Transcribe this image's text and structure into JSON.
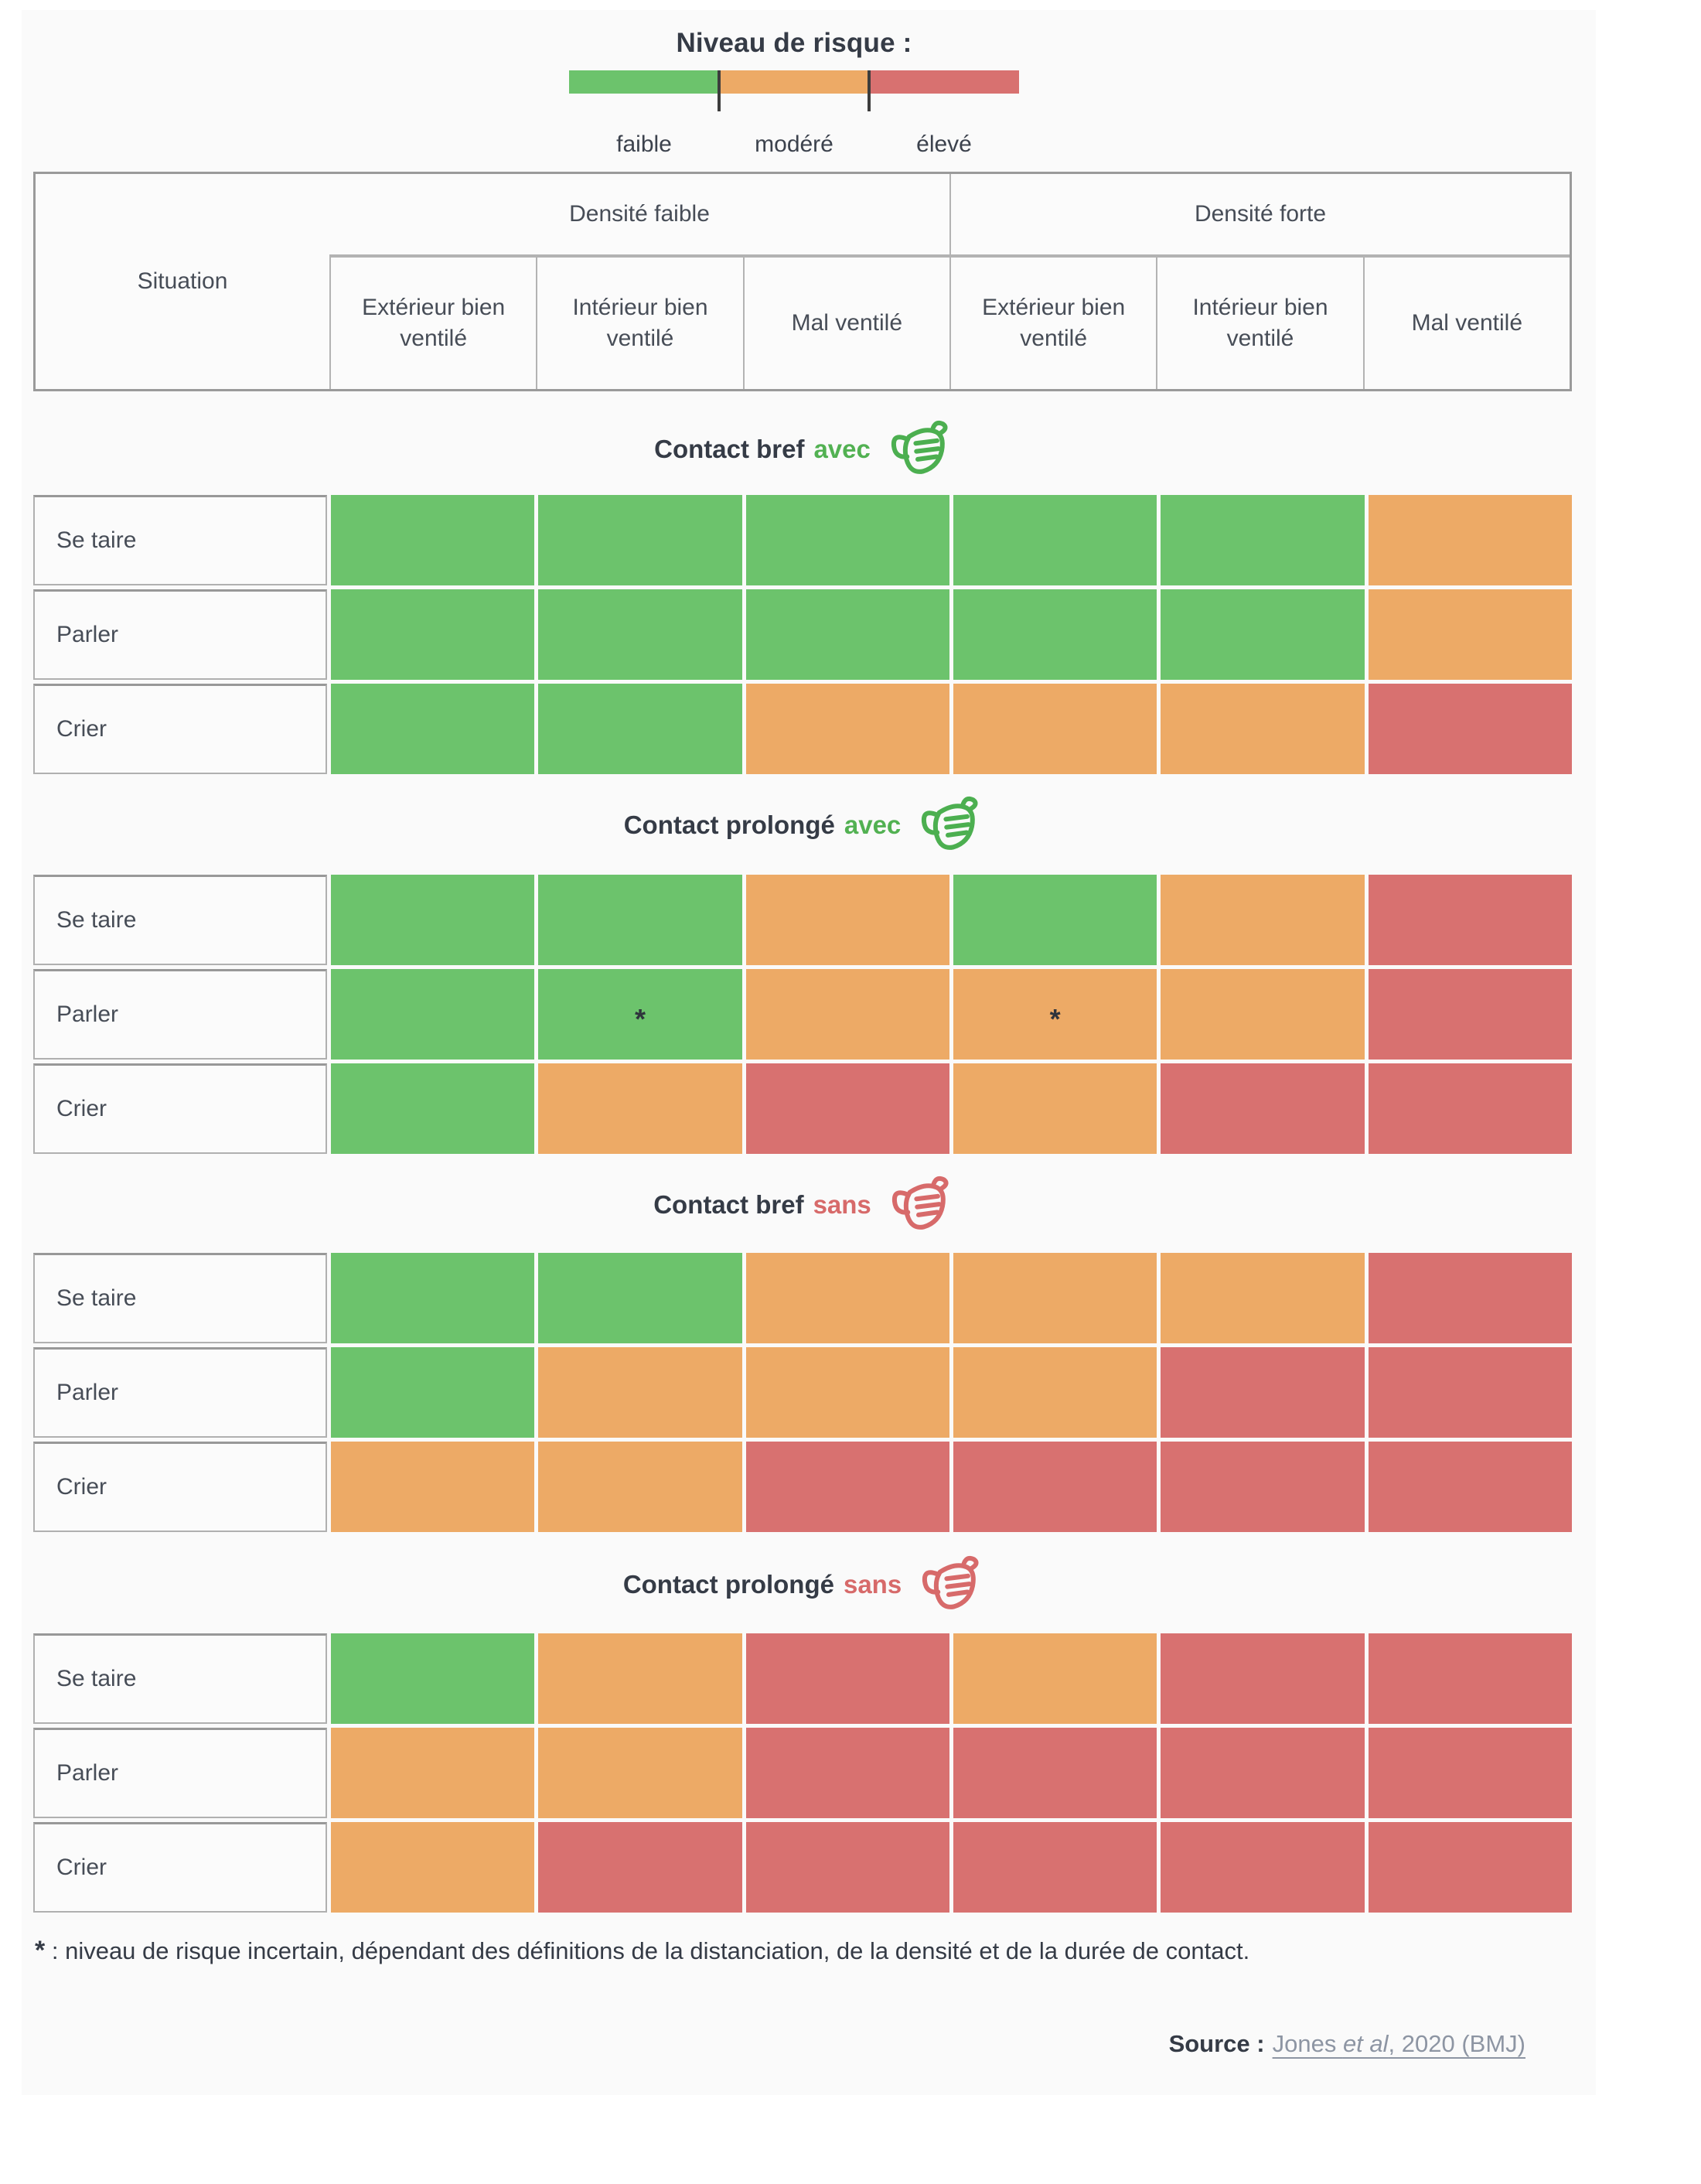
{
  "legend": {
    "title": "Niveau de risque :",
    "levels": [
      {
        "key": "faible",
        "label": "faible",
        "color": "#6cc36c"
      },
      {
        "key": "modere",
        "label": "modéré",
        "color": "#edaa66"
      },
      {
        "key": "eleve",
        "label": "élevé",
        "color": "#d87170"
      }
    ]
  },
  "risk_colors": {
    "faible": "#6cc36c",
    "modere": "#edaa66",
    "eleve": "#d87170"
  },
  "header": {
    "situation_label": "Situation",
    "groups": [
      {
        "label": "Densité faible"
      },
      {
        "label": "Densité forte"
      }
    ],
    "columns": [
      "Extérieur bien ventilé",
      "Intérieur bien ventilé",
      "Mal ventilé",
      "Extérieur bien ventilé",
      "Intérieur bien ventilé",
      "Mal ventilé"
    ]
  },
  "sections": [
    {
      "title_main": "Contact bref",
      "title_mask": "avec",
      "mask_color": "#4caf50",
      "mask_word_color": "#52b152",
      "rows": [
        {
          "label": "Se taire",
          "cells": [
            "faible",
            "faible",
            "faible",
            "faible",
            "faible",
            "modere"
          ]
        },
        {
          "label": "Parler",
          "cells": [
            "faible",
            "faible",
            "faible",
            "faible",
            "faible",
            "modere"
          ]
        },
        {
          "label": "Crier",
          "cells": [
            "faible",
            "faible",
            "modere",
            "modere",
            "modere",
            "eleve"
          ]
        }
      ]
    },
    {
      "title_main": "Contact prolongé",
      "title_mask": "avec",
      "mask_color": "#4caf50",
      "mask_word_color": "#52b152",
      "rows": [
        {
          "label": "Se taire",
          "cells": [
            "faible",
            "faible",
            "modere",
            "faible",
            "modere",
            "eleve"
          ]
        },
        {
          "label": "Parler",
          "cells": [
            "faible",
            "faible*",
            "modere",
            "modere*",
            "modere",
            "eleve"
          ]
        },
        {
          "label": "Crier",
          "cells": [
            "faible",
            "modere",
            "eleve",
            "modere",
            "eleve",
            "eleve"
          ]
        }
      ]
    },
    {
      "title_main": "Contact bref",
      "title_mask": "sans",
      "mask_color": "#d76a6a",
      "mask_word_color": "#d76a6a",
      "rows": [
        {
          "label": "Se taire",
          "cells": [
            "faible",
            "faible",
            "modere",
            "modere",
            "modere",
            "eleve"
          ]
        },
        {
          "label": "Parler",
          "cells": [
            "faible",
            "modere",
            "modere",
            "modere",
            "eleve",
            "eleve"
          ]
        },
        {
          "label": "Crier",
          "cells": [
            "modere",
            "modere",
            "eleve",
            "eleve",
            "eleve",
            "eleve"
          ]
        }
      ]
    },
    {
      "title_main": "Contact prolongé",
      "title_mask": "sans",
      "mask_color": "#d76a6a",
      "mask_word_color": "#d76a6a",
      "rows": [
        {
          "label": "Se taire",
          "cells": [
            "faible",
            "modere",
            "eleve",
            "modere",
            "eleve",
            "eleve"
          ]
        },
        {
          "label": "Parler",
          "cells": [
            "modere",
            "modere",
            "eleve",
            "eleve",
            "eleve",
            "eleve"
          ]
        },
        {
          "label": "Crier",
          "cells": [
            "modere",
            "eleve",
            "eleve",
            "eleve",
            "eleve",
            "eleve"
          ]
        }
      ]
    }
  ],
  "footnote": {
    "star": "*",
    "text": " : niveau de risque incertain, dépendant des définitions de la distanciation, de la densité et de la durée de contact."
  },
  "source": {
    "label": "Source :",
    "link_pre": "Jones ",
    "link_italic": "et al",
    "link_post": ", 2020 (BMJ)"
  },
  "chart_data": {
    "type": "heatmap",
    "title": "Niveau de risque :",
    "legend_entries": [
      "faible",
      "modéré",
      "élevé"
    ],
    "legend_colors": [
      "#6cc36c",
      "#edaa66",
      "#d87170"
    ],
    "columns": [
      "Densité faible / Extérieur bien ventilé",
      "Densité faible / Intérieur bien ventilé",
      "Densité faible / Mal ventilé",
      "Densité forte / Extérieur bien ventilé",
      "Densité forte / Intérieur bien ventilé",
      "Densité forte / Mal ventilé"
    ],
    "row_groups": [
      {
        "group": "Contact bref avec masque",
        "rows": {
          "Se taire": [
            "faible",
            "faible",
            "faible",
            "faible",
            "faible",
            "modéré"
          ],
          "Parler": [
            "faible",
            "faible",
            "faible",
            "faible",
            "faible",
            "modéré"
          ],
          "Crier": [
            "faible",
            "faible",
            "modéré",
            "modéré",
            "modéré",
            "élevé"
          ]
        }
      },
      {
        "group": "Contact prolongé avec masque",
        "rows": {
          "Se taire": [
            "faible",
            "faible",
            "modéré",
            "faible",
            "modéré",
            "élevé"
          ],
          "Parler": [
            "faible",
            "faible*",
            "modéré",
            "modéré*",
            "modéré",
            "élevé"
          ],
          "Crier": [
            "faible",
            "modéré",
            "élevé",
            "modéré",
            "élevé",
            "élevé"
          ]
        }
      },
      {
        "group": "Contact bref sans masque",
        "rows": {
          "Se taire": [
            "faible",
            "faible",
            "modéré",
            "modéré",
            "modéré",
            "élevé"
          ],
          "Parler": [
            "faible",
            "modéré",
            "modéré",
            "modéré",
            "élevé",
            "élevé"
          ],
          "Crier": [
            "modéré",
            "modéré",
            "élevé",
            "élevé",
            "élevé",
            "élevé"
          ]
        }
      },
      {
        "group": "Contact prolongé sans masque",
        "rows": {
          "Se taire": [
            "faible",
            "modéré",
            "élevé",
            "modéré",
            "élevé",
            "élevé"
          ],
          "Parler": [
            "modéré",
            "modéré",
            "élevé",
            "élevé",
            "élevé",
            "élevé"
          ],
          "Crier": [
            "modéré",
            "élevé",
            "élevé",
            "élevé",
            "élevé",
            "élevé"
          ]
        }
      }
    ],
    "annotation": "* : niveau de risque incertain, dépendant des définitions de la distanciation, de la densité et de la durée de contact.",
    "source": "Jones et al, 2020 (BMJ)"
  }
}
